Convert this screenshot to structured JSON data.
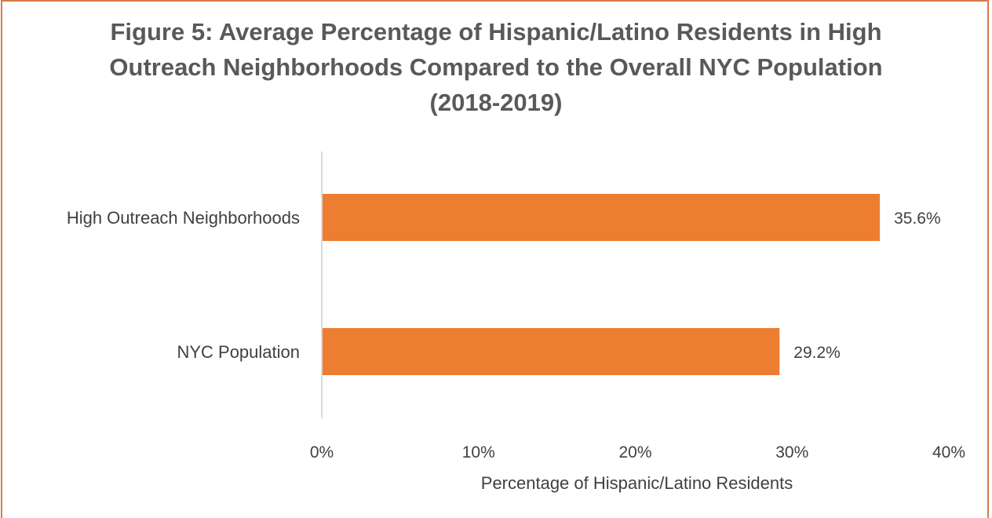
{
  "chart_data": {
    "type": "bar",
    "orientation": "horizontal",
    "title": "Figure 5: Average Percentage of Hispanic/Latino Residents in High Outreach Neighborhoods Compared to the Overall NYC Population (2018-2019)",
    "categories": [
      "High Outreach Neighborhoods",
      "NYC Population"
    ],
    "values": [
      35.6,
      29.2
    ],
    "data_labels": [
      "35.6%",
      "29.2%"
    ],
    "xlabel": "Percentage of Hispanic/Latino Residents",
    "ylabel": "",
    "xlim": [
      0,
      40
    ],
    "x_ticks": [
      0,
      10,
      20,
      30,
      40
    ],
    "x_tick_labels": [
      "0%",
      "10%",
      "20%",
      "30%",
      "40%"
    ],
    "grid": false,
    "legend": "none",
    "colors": {
      "bar": "#ed7d31",
      "frame": "#d97b45",
      "axis": "#d9d9d9",
      "text": "#404040",
      "title": "#595959"
    }
  }
}
